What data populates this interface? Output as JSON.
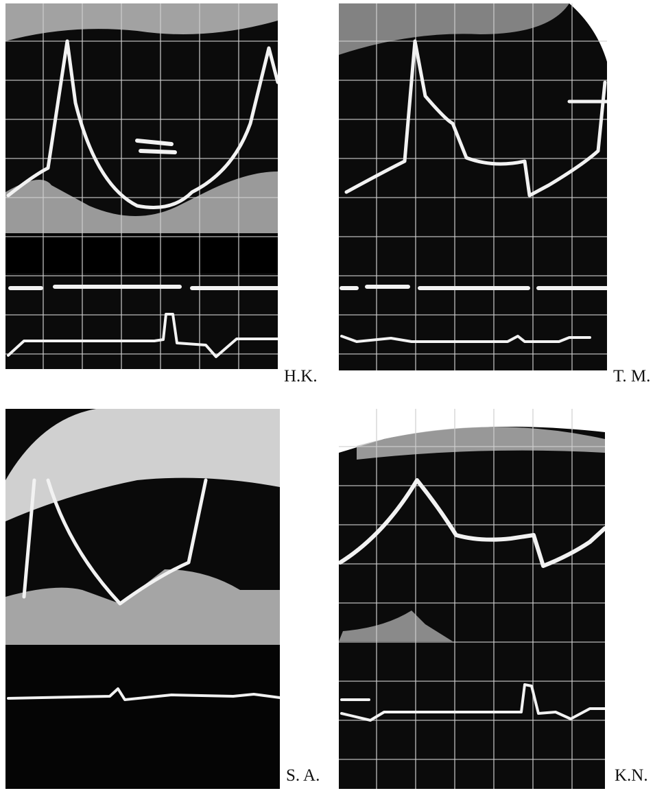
{
  "panels": [
    {
      "label": "H.K."
    },
    {
      "label": "T. M."
    },
    {
      "label": "S. A."
    },
    {
      "label": "K.N."
    }
  ]
}
